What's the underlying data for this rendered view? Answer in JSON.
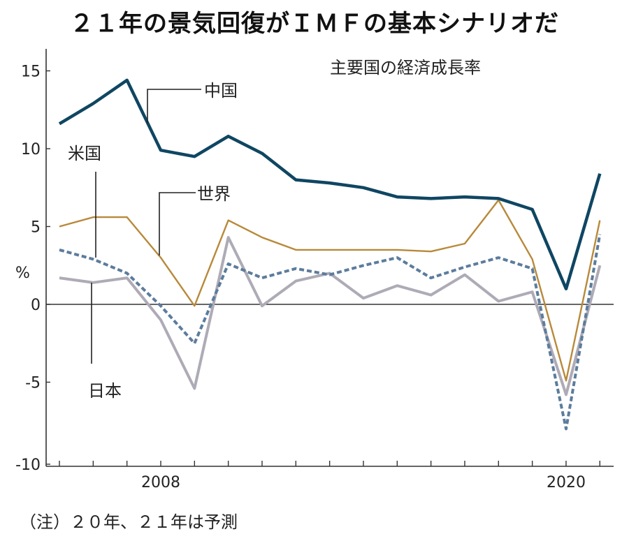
{
  "title": "２１年の景気回復がＩＭＦの基本シナリオだ",
  "note": "（注）２０年、２１年は予測",
  "chart_data": {
    "type": "line",
    "title": "２１年の景気回復がＩＭＦの基本シナリオだ",
    "subtitle": "主要国の経済成長率",
    "xlabel": "",
    "ylabel": "%",
    "x": [
      2005,
      2006,
      2007,
      2008,
      2009,
      2010,
      2011,
      2012,
      2013,
      2014,
      2015,
      2016,
      2017,
      2018,
      2019,
      2020,
      2021
    ],
    "xticks_labeled": [
      2008,
      2020
    ],
    "xtick_labels": [
      "2008",
      "2020"
    ],
    "xlim": [
      2004.9,
      2021.3
    ],
    "ylim": [
      -10,
      16.5
    ],
    "yticks": [
      15,
      10,
      5,
      0,
      -5,
      -10
    ],
    "ytick_labels": [
      "15",
      "10",
      "5",
      "0",
      "-5",
      "-10"
    ],
    "grid": false,
    "zero_line": true,
    "series": [
      {
        "name": "中国",
        "color": "#0f4662",
        "style": "solid-thick",
        "values": [
          11.6,
          12.9,
          14.4,
          9.9,
          9.5,
          10.8,
          9.7,
          8.0,
          7.8,
          7.5,
          6.9,
          6.8,
          6.9,
          6.8,
          6.1,
          1.0,
          8.4
        ]
      },
      {
        "name": "世界",
        "color": "#b8893a",
        "style": "solid-thin",
        "values": [
          5.0,
          5.6,
          5.6,
          3.0,
          -0.1,
          5.4,
          4.3,
          3.5,
          3.5,
          3.5,
          3.5,
          3.4,
          3.9,
          6.7,
          2.9,
          -4.9,
          5.4
        ]
      },
      {
        "name": "米国",
        "color": "#5c7c9c",
        "style": "dashed",
        "values": [
          3.5,
          2.9,
          2.0,
          -0.1,
          -2.5,
          2.6,
          1.7,
          2.3,
          1.9,
          2.5,
          3.0,
          1.7,
          2.4,
          3.0,
          2.3,
          -8.0,
          4.5
        ]
      },
      {
        "name": "日本",
        "color": "#aeabb6",
        "style": "solid-medium",
        "values": [
          1.7,
          1.4,
          1.7,
          -1.0,
          -5.4,
          4.3,
          -0.1,
          1.5,
          2.0,
          0.4,
          1.2,
          0.6,
          1.9,
          0.2,
          0.8,
          -5.8,
          2.5
        ]
      }
    ],
    "annotations": [
      "中国",
      "世界",
      "米国",
      "日本"
    ]
  }
}
